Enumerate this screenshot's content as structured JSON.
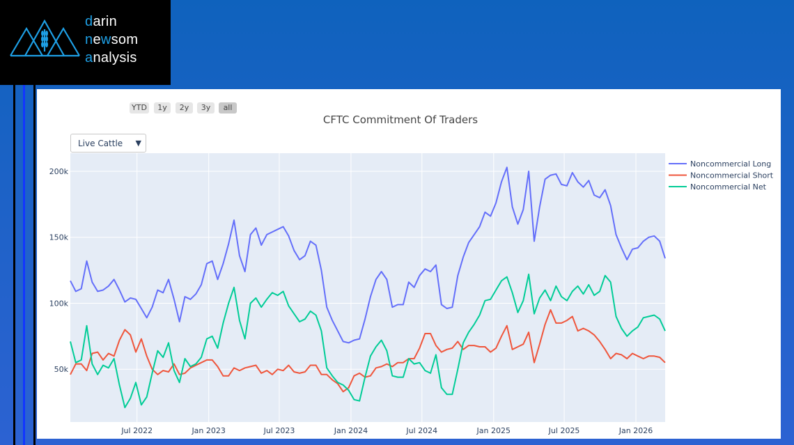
{
  "logo": {
    "l1a": "d",
    "l1b": "arin",
    "l2a": "n",
    "l2b": "e",
    "l2c": "w",
    "l2d": "som",
    "l3a": "a",
    "l3b": "nalysis",
    "accent": "#1ea0e6"
  },
  "range_buttons": [
    {
      "label": "YTD"
    },
    {
      "label": "1y"
    },
    {
      "label": "2y"
    },
    {
      "label": "3y"
    },
    {
      "label": "all",
      "active": true
    }
  ],
  "dropdown": {
    "selected": "Live Cattle",
    "arrow": "▼"
  },
  "chart_data": {
    "type": "line",
    "title": "CFTC Commitment Of Traders",
    "xlabel": "",
    "ylabel": "",
    "x_start": "2022-01-11",
    "x_step_days": 14,
    "x_range": [
      "2022-01-11",
      "2026-03-17"
    ],
    "ylim": [
      10000,
      213700
    ],
    "y_ticks": [
      {
        "value": 50000,
        "label": "50k"
      },
      {
        "value": 100000,
        "label": "100k"
      },
      {
        "value": 150000,
        "label": "150k"
      },
      {
        "value": 200000,
        "label": "200k"
      }
    ],
    "x_ticks": [
      {
        "date": "2022-07-01",
        "label": "Jul 2022"
      },
      {
        "date": "2023-01-01",
        "label": "Jan 2023"
      },
      {
        "date": "2023-07-01",
        "label": "Jul 2023"
      },
      {
        "date": "2024-01-01",
        "label": "Jan 2024"
      },
      {
        "date": "2024-07-01",
        "label": "Jul 2024"
      },
      {
        "date": "2025-01-01",
        "label": "Jan 2025"
      },
      {
        "date": "2025-07-01",
        "label": "Jul 2025"
      },
      {
        "date": "2026-01-01",
        "label": "Jan 2026"
      }
    ],
    "grid": true,
    "legend_position": "right",
    "series": [
      {
        "name": "Noncommercial Long",
        "color": "#636efa",
        "values_k": [
          117,
          109,
          111,
          132,
          116,
          109,
          110,
          113,
          118,
          110,
          101,
          104,
          103,
          96,
          89,
          97,
          110,
          108,
          118,
          103,
          86,
          105,
          103,
          107,
          114,
          130,
          132,
          118,
          130,
          145,
          163,
          136,
          124,
          152,
          157,
          144,
          152,
          154,
          156,
          158,
          151,
          140,
          133,
          136,
          147,
          144,
          125,
          97,
          87,
          79,
          71,
          70,
          72,
          73,
          88,
          105,
          118,
          124,
          118,
          97,
          99,
          99,
          116,
          112,
          121,
          126,
          124,
          129,
          99,
          96,
          97,
          121,
          135,
          146,
          152,
          158,
          169,
          166,
          176,
          192,
          203,
          173,
          160,
          171,
          200,
          147,
          173,
          194,
          197,
          198,
          190,
          189,
          199,
          192,
          188,
          193,
          182,
          180,
          186,
          174,
          152,
          142,
          133,
          141,
          142,
          147,
          150,
          151,
          147,
          134
        ]
      },
      {
        "name": "Noncommercial Short",
        "color": "#ef553b",
        "values_k": [
          46,
          54,
          54,
          49,
          62,
          63,
          57,
          62,
          60,
          72,
          80,
          76,
          63,
          73,
          60,
          50,
          46,
          49,
          48,
          54,
          46,
          47,
          51,
          53,
          55,
          57,
          57,
          52,
          45,
          45,
          51,
          49,
          51,
          52,
          53,
          47,
          49,
          46,
          50,
          49,
          53,
          48,
          47,
          48,
          53,
          53,
          46,
          46,
          42,
          39,
          33,
          36,
          45,
          47,
          44,
          45,
          51,
          52,
          54,
          52,
          55,
          55,
          58,
          58,
          66,
          77,
          77,
          68,
          63,
          65,
          66,
          71,
          65,
          68,
          68,
          67,
          67,
          63,
          66,
          75,
          83,
          65,
          67,
          69,
          78,
          55,
          69,
          84,
          95,
          85,
          85,
          87,
          90,
          79,
          81,
          79,
          76,
          71,
          65,
          58,
          62,
          61,
          58,
          62,
          60,
          58,
          60,
          60,
          59,
          55
        ]
      },
      {
        "name": "Noncommercial Net",
        "color": "#00cc96",
        "values_k": [
          71,
          55,
          57,
          83,
          54,
          46,
          53,
          51,
          58,
          38,
          21,
          28,
          40,
          23,
          29,
          47,
          64,
          59,
          70,
          49,
          40,
          58,
          52,
          54,
          59,
          73,
          75,
          66,
          85,
          100,
          112,
          87,
          73,
          100,
          104,
          97,
          103,
          108,
          106,
          109,
          98,
          92,
          86,
          88,
          94,
          91,
          79,
          51,
          45,
          40,
          38,
          34,
          27,
          26,
          44,
          60,
          67,
          72,
          64,
          45,
          44,
          44,
          58,
          54,
          55,
          49,
          47,
          61,
          36,
          31,
          31,
          50,
          70,
          78,
          84,
          91,
          102,
          103,
          110,
          117,
          120,
          108,
          93,
          102,
          122,
          92,
          104,
          110,
          102,
          113,
          105,
          102,
          109,
          113,
          107,
          114,
          106,
          109,
          121,
          116,
          90,
          81,
          75,
          79,
          82,
          89,
          90,
          91,
          88,
          79
        ]
      }
    ]
  }
}
